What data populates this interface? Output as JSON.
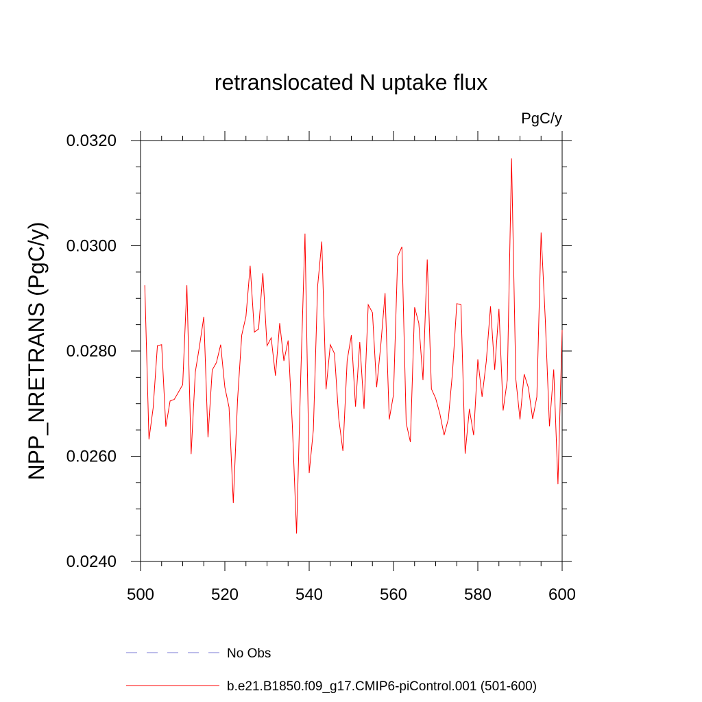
{
  "chart_data": {
    "type": "line",
    "title": "retranslocated N uptake flux",
    "units": "PgC/y",
    "ylabel": "NPP_NRETRANS  (PgC/y)",
    "xlabel": "",
    "xlim": [
      500,
      600
    ],
    "ylim": [
      0.024,
      0.032
    ],
    "xticks": [
      500,
      520,
      540,
      560,
      580,
      600
    ],
    "xtick_labels": [
      "500",
      "520",
      "540",
      "560",
      "580",
      "600"
    ],
    "yticks": [
      0.024,
      0.026,
      0.028,
      0.03,
      0.032
    ],
    "ytick_labels": [
      "0.0240",
      "0.0260",
      "0.0280",
      "0.0300",
      "0.0320"
    ],
    "grid": false,
    "legend_placement": "bottom",
    "series": [
      {
        "name": "No Obs",
        "color": "#7b7bd6",
        "style": "dashed",
        "x": [],
        "values": []
      },
      {
        "name": "b.e21.B1850.f09_g17.CMIP6-piControl.001 (501-600)",
        "color": "#ff0000",
        "style": "solid",
        "x": [
          501,
          502,
          503,
          504,
          505,
          506,
          507,
          508,
          509,
          510,
          511,
          512,
          513,
          514,
          515,
          516,
          517,
          518,
          519,
          520,
          521,
          522,
          523,
          524,
          525,
          526,
          527,
          528,
          529,
          530,
          531,
          532,
          533,
          534,
          535,
          536,
          537,
          538,
          539,
          540,
          541,
          542,
          543,
          544,
          545,
          546,
          547,
          548,
          549,
          550,
          551,
          552,
          553,
          554,
          555,
          556,
          557,
          558,
          559,
          560,
          561,
          562,
          563,
          564,
          565,
          566,
          567,
          568,
          569,
          570,
          571,
          572,
          573,
          574,
          575,
          576,
          577,
          578,
          579,
          580,
          581,
          582,
          583,
          584,
          585,
          586,
          587,
          588,
          589,
          590,
          591,
          592,
          593,
          594,
          595,
          596,
          597,
          598,
          599,
          600
        ],
        "values": [
          0.02925,
          0.02632,
          0.02692,
          0.0281,
          0.02812,
          0.02656,
          0.02705,
          0.02708,
          0.02722,
          0.02736,
          0.02925,
          0.02604,
          0.0276,
          0.0281,
          0.02865,
          0.02636,
          0.02764,
          0.02778,
          0.02812,
          0.02731,
          0.02693,
          0.02511,
          0.02707,
          0.0283,
          0.02866,
          0.02962,
          0.02836,
          0.02842,
          0.02948,
          0.0281,
          0.02825,
          0.02753,
          0.02853,
          0.02781,
          0.0282,
          0.0266,
          0.02453,
          0.02752,
          0.03023,
          0.02568,
          0.0265,
          0.02923,
          0.03008,
          0.02727,
          0.02812,
          0.02795,
          0.02672,
          0.0261,
          0.02782,
          0.0283,
          0.02694,
          0.02817,
          0.0269,
          0.02888,
          0.02873,
          0.02731,
          0.02812,
          0.0291,
          0.0267,
          0.02717,
          0.0298,
          0.02998,
          0.02663,
          0.02627,
          0.02883,
          0.02853,
          0.02745,
          0.02974,
          0.02728,
          0.0271,
          0.02681,
          0.0264,
          0.02671,
          0.0276,
          0.0289,
          0.02888,
          0.02605,
          0.0269,
          0.0264,
          0.02784,
          0.02713,
          0.0278,
          0.02885,
          0.02764,
          0.0288,
          0.02687,
          0.02745,
          0.03166,
          0.02747,
          0.0267,
          0.02756,
          0.0273,
          0.02671,
          0.02713,
          0.03025,
          0.0286,
          0.02657,
          0.02765,
          0.02547,
          0.0284
        ]
      }
    ]
  }
}
